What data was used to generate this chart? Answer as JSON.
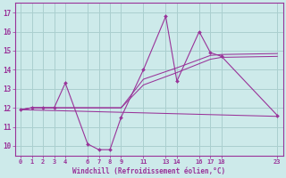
{
  "xlabel": "Windchill (Refroidissement éolien,°C)",
  "background_color": "#cdeaea",
  "grid_color": "#aacfcf",
  "line_color": "#993399",
  "xlim": [
    -0.5,
    23.5
  ],
  "ylim": [
    9.5,
    17.5
  ],
  "xticks": [
    0,
    1,
    2,
    3,
    4,
    6,
    7,
    8,
    9,
    11,
    13,
    14,
    16,
    17,
    18,
    23
  ],
  "xtick_labels": [
    "0",
    "1",
    "2",
    "3",
    "4",
    "6",
    "7",
    "8",
    "9",
    "11",
    "13",
    "14",
    "16",
    "17",
    "18",
    "23"
  ],
  "yticks": [
    10,
    11,
    12,
    13,
    14,
    15,
    16,
    17
  ],
  "ytick_labels": [
    "10",
    "11",
    "12",
    "13",
    "14",
    "15",
    "16",
    "17"
  ],
  "series": [
    {
      "x": [
        0,
        1,
        2,
        3,
        4,
        6,
        7,
        8,
        9,
        11,
        13,
        14,
        16,
        17,
        18,
        23
      ],
      "y": [
        11.9,
        12.0,
        12.0,
        12.0,
        13.3,
        10.1,
        9.8,
        9.8,
        11.5,
        14.0,
        16.8,
        13.4,
        16.0,
        14.9,
        14.7,
        11.6
      ],
      "marker": true
    },
    {
      "x": [
        0,
        23
      ],
      "y": [
        11.9,
        11.55
      ],
      "marker": false
    },
    {
      "x": [
        0,
        1,
        4,
        9,
        11,
        14,
        17,
        18,
        23
      ],
      "y": [
        11.9,
        12.0,
        12.0,
        12.0,
        13.2,
        13.85,
        14.55,
        14.65,
        14.7
      ],
      "marker": false
    },
    {
      "x": [
        0,
        1,
        4,
        9,
        11,
        14,
        17,
        18,
        23
      ],
      "y": [
        11.9,
        12.0,
        12.0,
        12.0,
        13.5,
        14.1,
        14.75,
        14.8,
        14.85
      ],
      "marker": false
    }
  ]
}
